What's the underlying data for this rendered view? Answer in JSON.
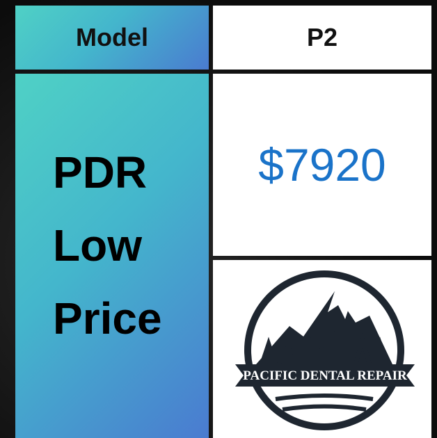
{
  "header": {
    "label": "Model",
    "model": "P2"
  },
  "row": {
    "label_lines": [
      "PDR",
      "Low",
      "Price"
    ],
    "price": "$7920"
  },
  "logo": {
    "text": "PACIFIC DENTAL REPAIR"
  }
}
